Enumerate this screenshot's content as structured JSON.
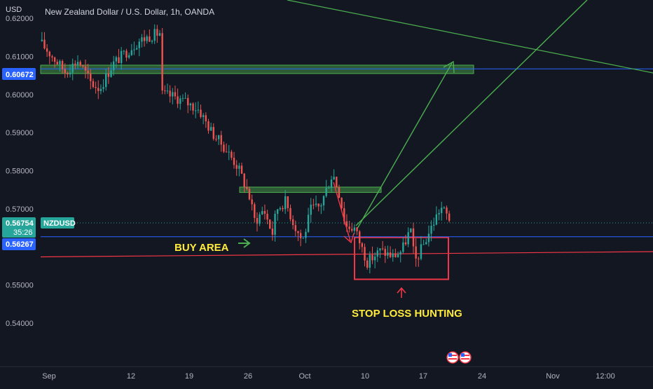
{
  "header": {
    "currency_label": "USD",
    "title": "New Zealand Dollar / U.S. Dollar, 1h, OANDA"
  },
  "chart_data": {
    "type": "candlestick",
    "symbol": "NZDUSD",
    "interval": "1h",
    "source": "OANDA",
    "y_axis": {
      "ticks": [
        0.62,
        0.61,
        0.6,
        0.59,
        0.58,
        0.57,
        0.56,
        0.55,
        0.54
      ],
      "tick_labels": [
        "0.62000",
        "0.61000",
        "0.60000",
        "0.59000",
        "0.58000",
        "0.57000",
        "0.56000",
        "0.55000",
        "0.54000"
      ],
      "range": [
        0.5332,
        0.6248
      ]
    },
    "x_axis": {
      "tick_labels": [
        "Sep",
        "12",
        "19",
        "26",
        "Oct",
        "10",
        "17",
        "24",
        "Nov",
        "12:00"
      ]
    },
    "grid": false,
    "price_path": [
      [
        0,
        0.614
      ],
      [
        3,
        0.61
      ],
      [
        6,
        0.606
      ],
      [
        9,
        0.609
      ],
      [
        12,
        0.603
      ],
      [
        14,
        0.6015
      ],
      [
        17,
        0.608
      ],
      [
        20,
        0.611
      ],
      [
        23,
        0.614
      ],
      [
        26,
        0.6155
      ],
      [
        28,
        0.6162
      ],
      [
        28.5,
        0.6
      ],
      [
        31,
        0.5995
      ],
      [
        34,
        0.598
      ],
      [
        37,
        0.596
      ],
      [
        40,
        0.59
      ],
      [
        43,
        0.586
      ],
      [
        46,
        0.581
      ],
      [
        48.5,
        0.574
      ],
      [
        50,
        0.5665
      ],
      [
        52,
        0.57
      ],
      [
        54,
        0.5635
      ],
      [
        55,
        0.57
      ],
      [
        57,
        0.572
      ],
      [
        59,
        0.566
      ],
      [
        61,
        0.5615
      ],
      [
        63,
        0.57
      ],
      [
        65,
        0.5705
      ],
      [
        67,
        0.5765
      ],
      [
        68,
        0.5795
      ],
      [
        69.5,
        0.574
      ],
      [
        71,
        0.5655
      ],
      [
        73,
        0.565
      ],
      [
        76,
        0.556
      ],
      [
        79,
        0.559
      ],
      [
        82,
        0.5575
      ],
      [
        84,
        0.559
      ],
      [
        86,
        0.5648
      ],
      [
        87,
        0.556
      ],
      [
        89,
        0.5605
      ],
      [
        91,
        0.5655
      ],
      [
        93,
        0.5705
      ],
      [
        95,
        0.5675
      ]
    ],
    "current_price": {
      "value": 0.56754,
      "label": "0.56754",
      "symbol_label": "NZDUSD",
      "countdown": "35:26"
    },
    "levels": [
      {
        "name": "upper-blue-level",
        "value": 0.60672,
        "label": "0.60672",
        "color": "#2962ff"
      },
      {
        "name": "lower-blue-level",
        "value": 0.56267,
        "label": "0.56267",
        "color": "#2962ff"
      }
    ],
    "zones": [
      {
        "name": "target-zone",
        "from": 0.6055,
        "to": 0.6077,
        "color": "#4caf50"
      },
      {
        "name": "resistance-zone",
        "from": 0.5743,
        "to": 0.5757,
        "color": "#4caf50"
      },
      {
        "name": "stop-loss-box",
        "from": 0.5515,
        "to": 0.5625,
        "color": "#f23645"
      }
    ],
    "annotations": [
      {
        "name": "buy-area-label",
        "text": "BUY AREA"
      },
      {
        "name": "stop-loss-label",
        "text": "STOP LOSS HUNTING"
      }
    ]
  },
  "events": {
    "flag_icons": [
      "us-flag-icon",
      "us-flag-icon"
    ]
  },
  "colors": {
    "background": "#131722",
    "up_candle": "#26a69a",
    "down_candle": "#ef5350",
    "green_line": "#4caf50",
    "red_line": "#f23645",
    "label_yellow": "#ffeb3b"
  }
}
